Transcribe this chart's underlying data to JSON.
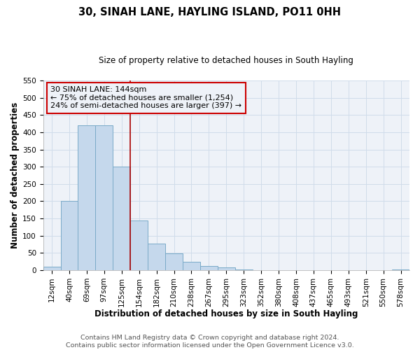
{
  "title": "30, SINAH LANE, HAYLING ISLAND, PO11 0HH",
  "subtitle": "Size of property relative to detached houses in South Hayling",
  "xlabel": "Distribution of detached houses by size in South Hayling",
  "ylabel": "Number of detached properties",
  "footer_line1": "Contains HM Land Registry data © Crown copyright and database right 2024.",
  "footer_line2": "Contains public sector information licensed under the Open Government Licence v3.0.",
  "bar_labels": [
    "12sqm",
    "40sqm",
    "69sqm",
    "97sqm",
    "125sqm",
    "154sqm",
    "182sqm",
    "210sqm",
    "238sqm",
    "267sqm",
    "295sqm",
    "323sqm",
    "352sqm",
    "380sqm",
    "408sqm",
    "437sqm",
    "465sqm",
    "493sqm",
    "521sqm",
    "550sqm",
    "578sqm"
  ],
  "bar_values": [
    10,
    200,
    420,
    420,
    300,
    145,
    78,
    48,
    25,
    13,
    8,
    2,
    0,
    0,
    0,
    0,
    0,
    0,
    0,
    0,
    2
  ],
  "bar_color": "#c5d8ec",
  "bar_edge_color": "#7aaac8",
  "ylim": [
    0,
    550
  ],
  "yticks": [
    0,
    50,
    100,
    150,
    200,
    250,
    300,
    350,
    400,
    450,
    500,
    550
  ],
  "property_line_bar_index": 5,
  "property_line_label": "30 SINAH LANE: 144sqm",
  "annotation_line1": "← 75% of detached houses are smaller (1,254)",
  "annotation_line2": "24% of semi-detached houses are larger (397) →",
  "annotation_box_color": "#cc0000",
  "property_line_color": "#aa0000",
  "grid_color": "#d0dcea",
  "background_color": "#ffffff",
  "plot_bg_color": "#eef2f8",
  "title_fontsize": 10.5,
  "subtitle_fontsize": 8.5,
  "tick_fontsize": 7.5,
  "axis_label_fontsize": 8.5,
  "annotation_fontsize": 8.0,
  "footer_fontsize": 6.8
}
